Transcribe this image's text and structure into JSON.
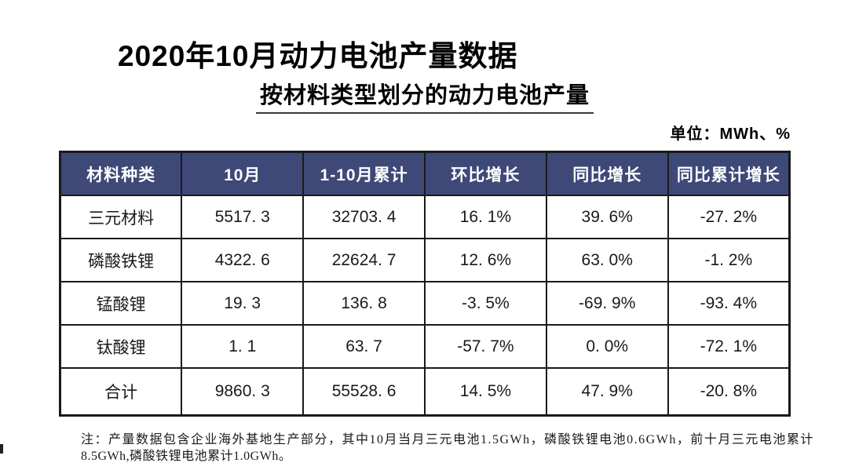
{
  "page": {
    "title": "2020年10月动力电池产量数据",
    "subtitle": "按材料类型划分的动力电池产量",
    "unit_label": "单位：MWh、%",
    "note_line1": "注：产量数据包含企业海外基地生产部分，其中10月当月三元电池1.5GWh，磷酸铁锂电池0.6GWh，前十月三元电池累计",
    "note_line2": "8.5GWh,磷酸铁锂电池累计1.0GWh。"
  },
  "colors": {
    "header_bg": "#3e4978",
    "header_text": "#ffffff",
    "border": "#1a1a1a",
    "page_bg": "#ffffff"
  },
  "table": {
    "headers": [
      "材料种类",
      "10月",
      "1-10月累计",
      "环比增长",
      "同比增长",
      "同比累计增长"
    ],
    "rows": [
      [
        "三元材料",
        "5517. 3",
        "32703. 4",
        "16. 1%",
        "39. 6%",
        "-27. 2%"
      ],
      [
        "磷酸铁锂",
        "4322. 6",
        "22624. 7",
        "12. 6%",
        "63. 0%",
        "-1. 2%"
      ],
      [
        "锰酸锂",
        "19. 3",
        "136. 8",
        "-3. 5%",
        "-69. 9%",
        "-93. 4%"
      ],
      [
        "钛酸锂",
        "1. 1",
        "63. 7",
        "-57. 7%",
        "0. 0%",
        "-72. 1%"
      ],
      [
        "合计",
        "9860. 3",
        "55528. 6",
        "14. 5%",
        "47. 9%",
        "-20. 8%"
      ]
    ]
  }
}
